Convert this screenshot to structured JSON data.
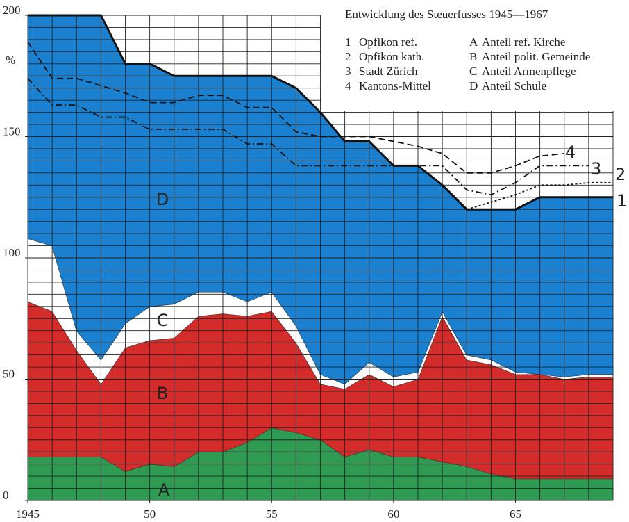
{
  "chart_data": {
    "type": "area",
    "stacked": true,
    "title": "Entwicklung des Steuerfusses 1945—1967",
    "y_label": "%",
    "x": [
      1945,
      1946,
      1947,
      1948,
      1949,
      1950,
      1951,
      1952,
      1953,
      1954,
      1955,
      1956,
      1957,
      1958,
      1959,
      1960,
      1961,
      1962,
      1963,
      1964,
      1965,
      1966,
      1967,
      1968,
      1969
    ],
    "xlim": [
      1945,
      1969
    ],
    "xticks": [
      1945,
      {
        "value": 1950,
        "label": "50"
      },
      {
        "value": 1955,
        "label": "55"
      },
      {
        "value": 1960,
        "label": "60"
      },
      {
        "value": 1965,
        "label": "65"
      }
    ],
    "ylim": [
      0,
      200
    ],
    "yticks": [
      0,
      50,
      100,
      150,
      200
    ],
    "minor_grid": {
      "x_step": 1,
      "y_step": 5
    },
    "grid_color": "#222222",
    "series": [
      {
        "letter": "A",
        "name": "Anteil ref. Kirche",
        "color": "#2e9a52",
        "values": [
          18,
          18,
          18,
          18,
          12,
          15,
          14,
          20,
          20,
          24,
          30,
          28,
          25,
          18,
          21,
          18,
          18,
          16,
          14,
          11,
          9,
          9,
          9,
          9,
          9
        ]
      },
      {
        "letter": "B",
        "name": "Anteil polit. Gemeinde",
        "color": "#d42b2b",
        "values": [
          64,
          60,
          44,
          30,
          51,
          51,
          53,
          56,
          57,
          52,
          48,
          37,
          23,
          28,
          31,
          29,
          32,
          60,
          44,
          45,
          43,
          43,
          41,
          42,
          42
        ]
      },
      {
        "letter": "C",
        "name": "Anteil Armenpflege",
        "color": "#ffffff",
        "values": [
          26,
          27,
          8,
          10,
          10,
          14,
          14,
          10,
          9,
          6,
          8,
          7,
          4,
          2,
          5,
          4,
          3,
          2,
          2,
          2,
          1,
          0,
          1,
          1,
          1
        ]
      },
      {
        "letter": "D",
        "name": "Anteil Schule",
        "color": "#1a80cf",
        "values": [
          92,
          95,
          130,
          142,
          107,
          100,
          94,
          89,
          89,
          93,
          89,
          98,
          108,
          100,
          91,
          87,
          85,
          52,
          60,
          62,
          67,
          73,
          74,
          73,
          73
        ]
      }
    ],
    "lines": [
      {
        "number": "1",
        "name": "Opfikon ref.",
        "style": "solid",
        "values": [
          200,
          200,
          200,
          200,
          180,
          180,
          175,
          175,
          175,
          175,
          175,
          170,
          160,
          148,
          148,
          138,
          138,
          130,
          120,
          120,
          120,
          125,
          125,
          125,
          125
        ]
      },
      {
        "number": "2",
        "name": "Opfikon kath.",
        "style": "dotted",
        "values": [
          null,
          null,
          null,
          null,
          null,
          null,
          null,
          null,
          null,
          null,
          null,
          null,
          null,
          null,
          null,
          null,
          null,
          null,
          120,
          123,
          126,
          130,
          130,
          131,
          131
        ]
      },
      {
        "number": "3",
        "name": "Stadt Zürich",
        "style": "dashdot",
        "values": [
          174,
          163,
          163,
          158,
          158,
          153,
          153,
          153,
          153,
          147,
          147,
          138,
          138,
          138,
          138,
          138,
          138,
          138,
          128,
          126,
          131,
          138,
          138,
          138,
          null
        ]
      },
      {
        "number": "4",
        "name": "Kantons-Mittel",
        "style": "dashed",
        "values": [
          189,
          174,
          174,
          171,
          168,
          164,
          164,
          167,
          167,
          162,
          162,
          152,
          150,
          150,
          150,
          148,
          146,
          143,
          135,
          135,
          138,
          142,
          143,
          null,
          null
        ]
      }
    ]
  }
}
